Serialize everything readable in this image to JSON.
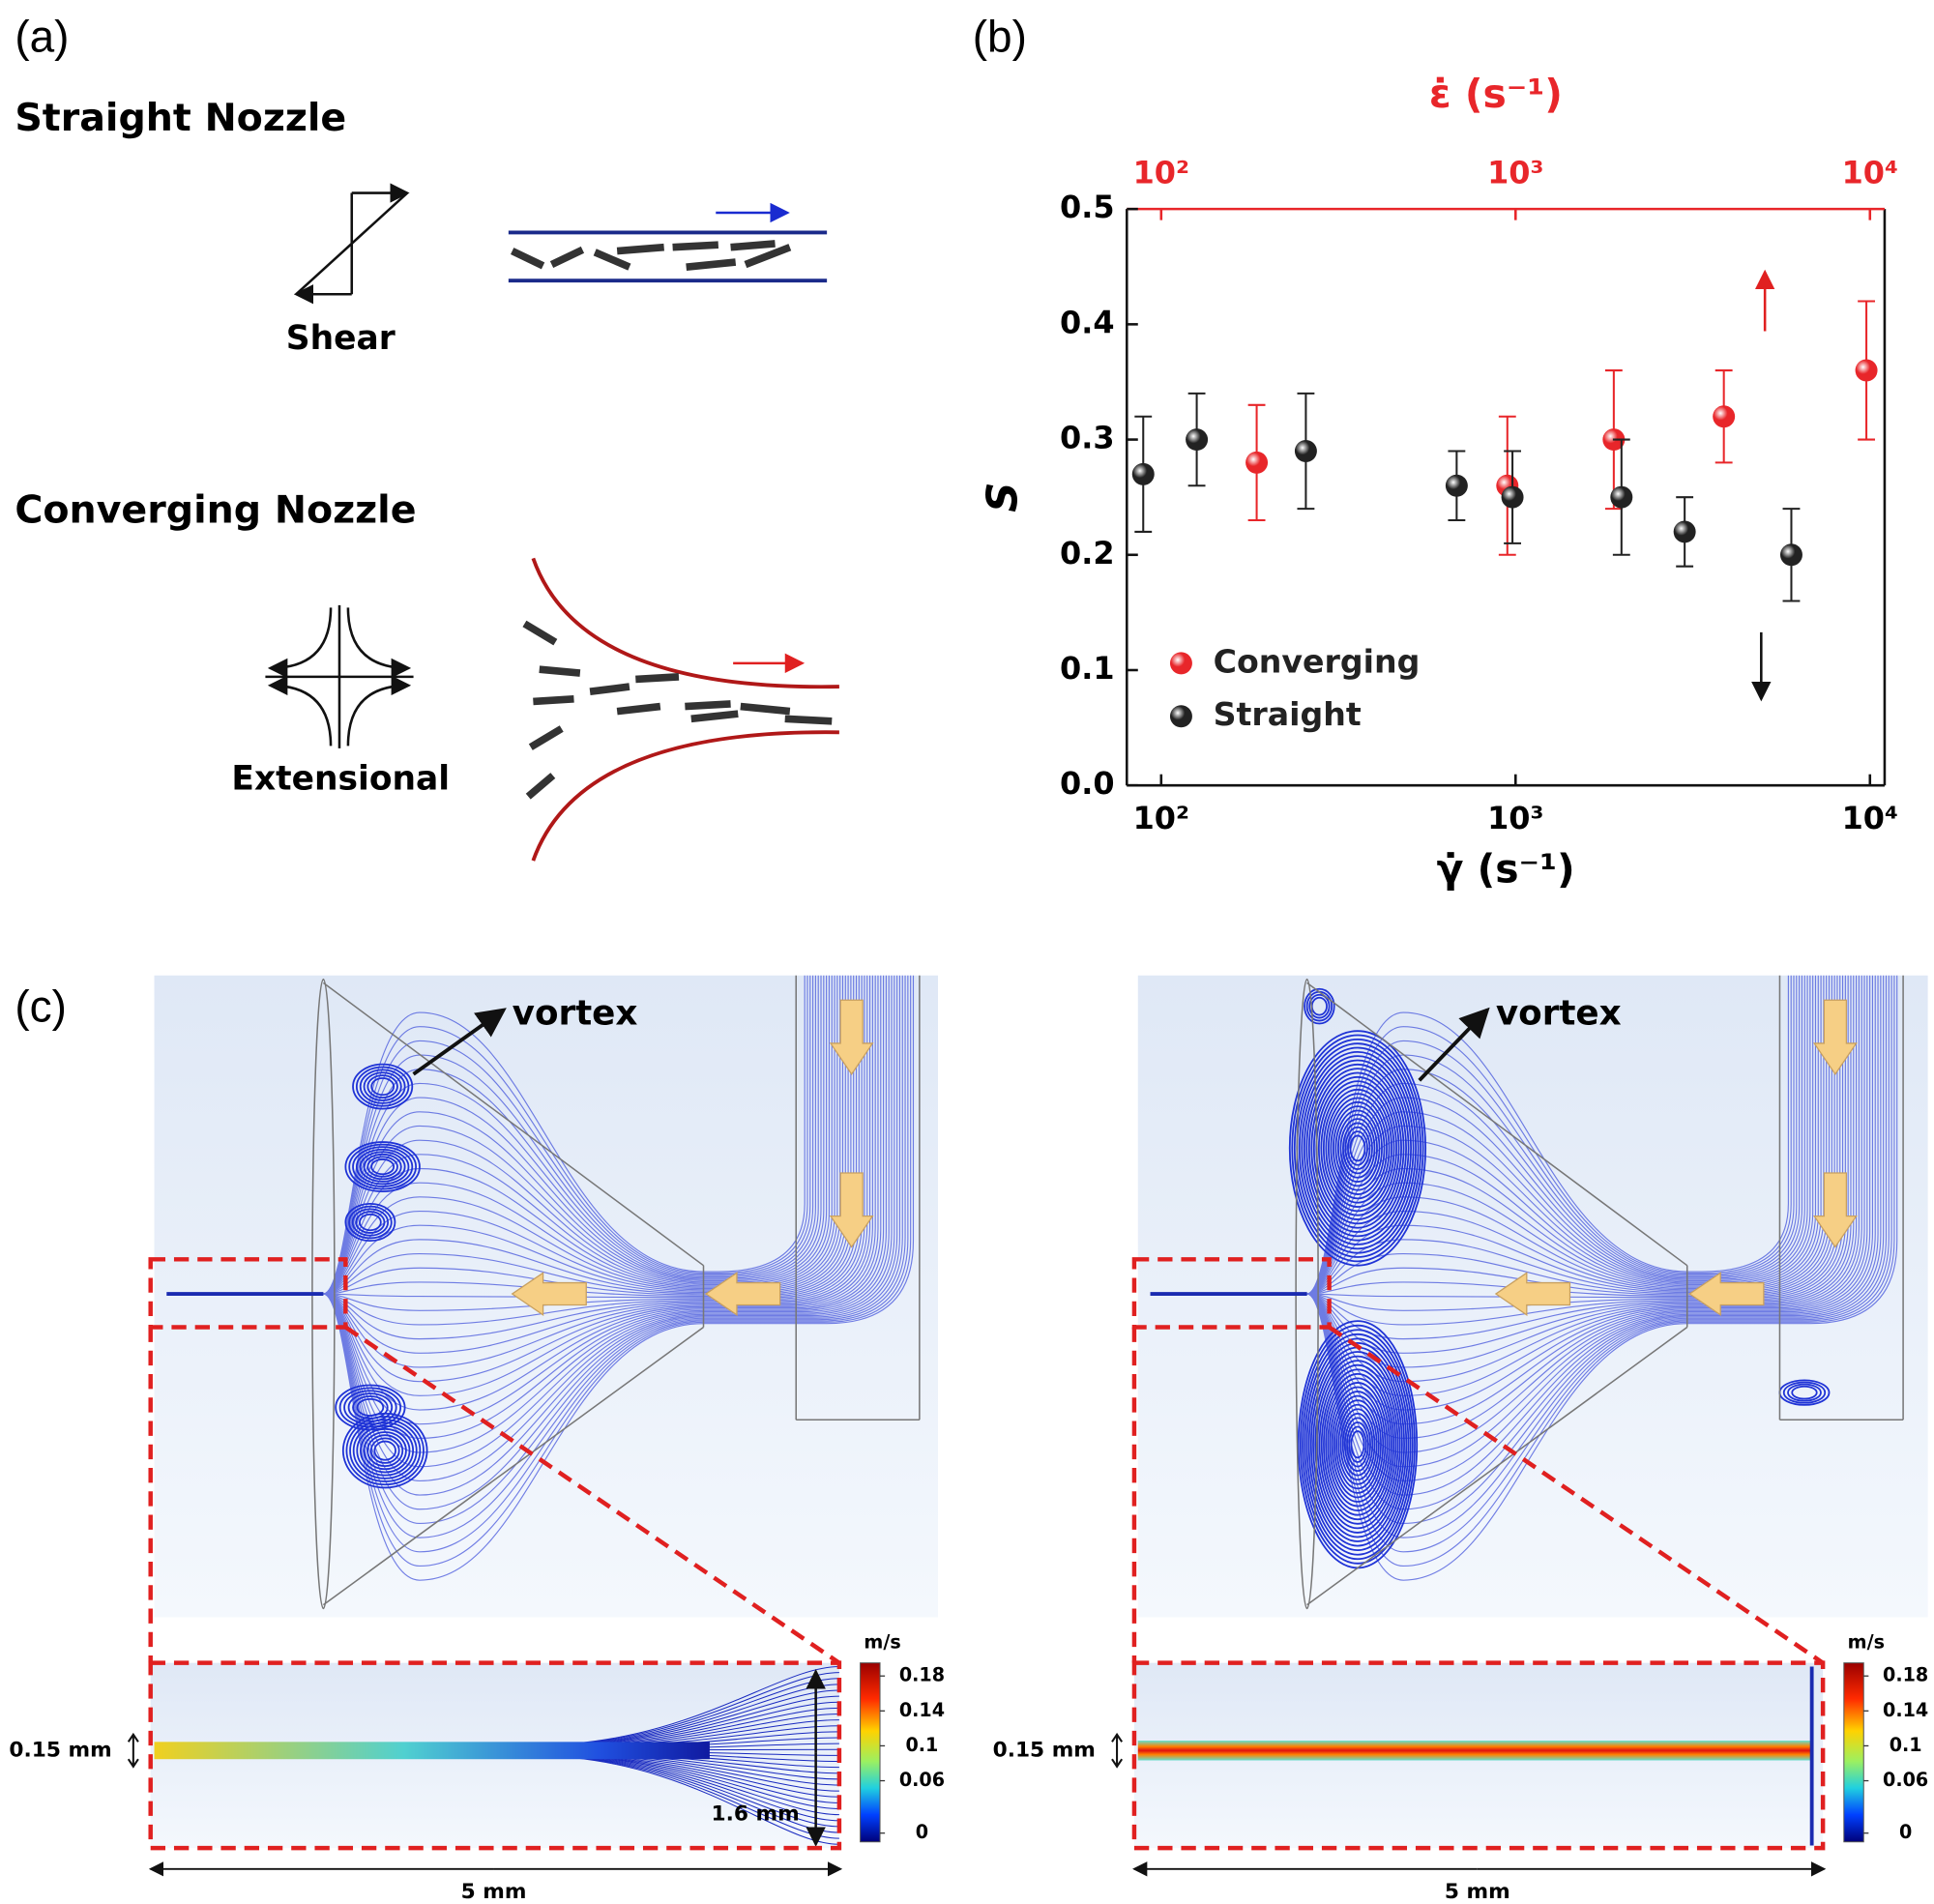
{
  "panel_a": {
    "label": "(a)",
    "straight_title": "Straight Nozzle",
    "shear": "Shear",
    "converging_title": "Converging Nozzle",
    "extensional": "Extensional"
  },
  "chart_data": {
    "type": "scatter",
    "panel_label": "(b)",
    "x_label": "γ̇ (s⁻¹)",
    "x2_label": "ε̇ (s⁻¹)",
    "y_label": "S",
    "xscale": "log",
    "xlim": [
      80,
      11000
    ],
    "xticks": [
      {
        "value": 100,
        "label": "10²"
      },
      {
        "value": 1000,
        "label": "10³"
      },
      {
        "value": 10000,
        "label": "10⁴"
      }
    ],
    "x2lim": [
      80,
      11000
    ],
    "x2ticks": [
      {
        "value": 100,
        "label": "10²"
      },
      {
        "value": 1000,
        "label": "10³"
      },
      {
        "value": 10000,
        "label": "10⁴"
      }
    ],
    "x2_color": "#e8262a",
    "ylim": [
      0,
      0.5
    ],
    "yticks": [
      {
        "value": 0,
        "label": "0.0"
      },
      0.1,
      0.2,
      0.3,
      0.4,
      0.5
    ],
    "legend": "lower left",
    "series": [
      {
        "name": "Converging",
        "color": "#e8262a",
        "x": [
          186,
          948,
          1893,
          3870,
          9770
        ],
        "values": [
          0.28,
          0.26,
          0.3,
          0.32,
          0.36
        ],
        "errors": [
          0.05,
          0.06,
          0.06,
          0.04,
          0.06
        ]
      },
      {
        "name": "Straight",
        "color": "#222222",
        "x": [
          89,
          126,
          256,
          682,
          980,
          1990,
          3000,
          6000
        ],
        "values": [
          0.27,
          0.3,
          0.29,
          0.26,
          0.25,
          0.25,
          0.22,
          0.2
        ],
        "errors": [
          0.05,
          0.04,
          0.05,
          0.03,
          0.04,
          0.05,
          0.03,
          0.04
        ]
      }
    ]
  },
  "panel_c": {
    "label": "(c)",
    "left": {
      "annotation": "vortex",
      "colorbar_unit": "m/s",
      "colorbar_lim": [
        -0.01,
        0.195
      ],
      "colorbar_ticks": [
        0.18,
        0.14,
        0.1,
        0.06,
        0
      ],
      "jet_width": "0.15 mm",
      "inlet_height": "1.6 mm",
      "length": "5 mm"
    },
    "right": {
      "annotation": "vortex",
      "colorbar_unit": "m/s",
      "colorbar_lim": [
        -0.01,
        0.195
      ],
      "colorbar_ticks": [
        0.18,
        0.14,
        0.1,
        0.06,
        0
      ],
      "jet_width": "0.15 mm",
      "length": "5 mm"
    }
  }
}
